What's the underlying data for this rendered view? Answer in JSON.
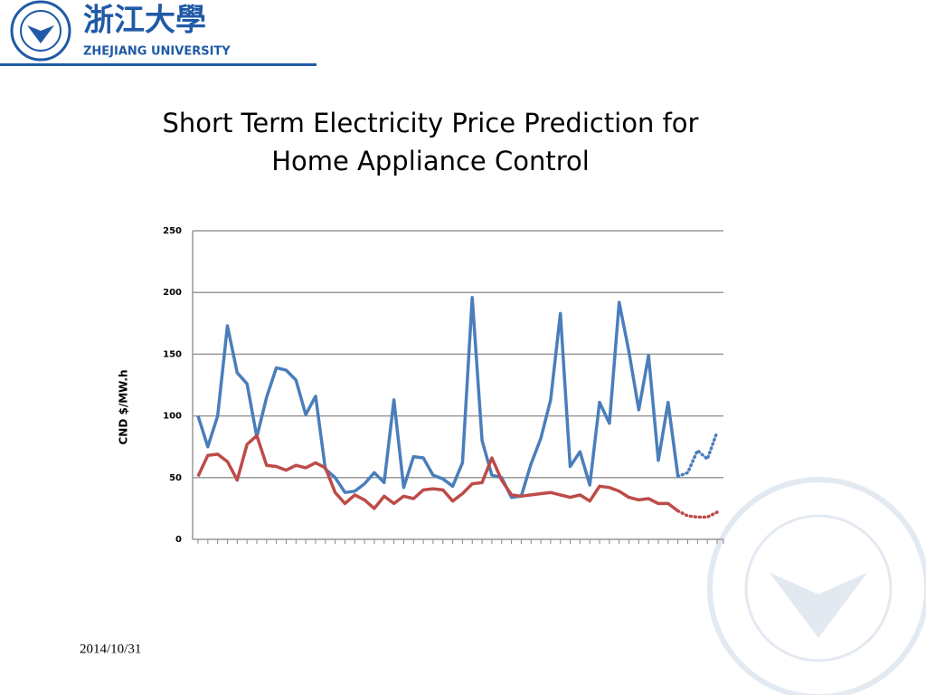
{
  "header": {
    "logo_chinese": "浙江大學",
    "logo_english": "ZHEJIANG UNIVERSITY"
  },
  "footer": {
    "date": "2014/10/31"
  },
  "chart_data": {
    "type": "line",
    "title": [
      "Short Term Electricity Price Prediction for",
      "Home Appliance Control"
    ],
    "y_label": "CND $/MW.h",
    "categories": [
      null,
      null,
      null,
      null,
      null,
      null,
      null,
      null,
      null,
      null,
      null,
      null,
      null,
      null,
      null,
      null,
      null,
      null,
      null,
      null,
      null,
      null,
      null,
      null,
      null,
      null,
      null,
      null,
      null,
      null,
      null,
      null,
      null,
      null,
      null,
      null,
      null,
      null,
      null,
      null,
      null,
      null,
      null,
      null,
      null,
      null,
      null,
      null,
      null,
      null,
      null,
      null,
      null,
      null
    ],
    "series": [
      {
        "color": "#4a7ebb",
        "dotted_from_index": 49,
        "values": [
          100,
          75,
          100,
          173,
          135,
          126,
          83,
          115,
          139,
          137,
          129,
          101,
          116,
          57,
          50,
          38,
          39,
          45,
          54,
          46,
          113,
          42,
          67,
          66,
          52,
          49,
          43,
          62,
          196,
          80,
          52,
          50,
          34,
          35,
          61,
          82,
          113,
          183,
          59,
          71,
          44,
          111,
          94,
          192,
          152,
          105,
          149,
          64,
          111,
          51,
          54,
          72,
          65,
          87
        ]
      },
      {
        "color": "#be4b48",
        "dotted_from_index": 49,
        "values": [
          51,
          68,
          69,
          63,
          48,
          77,
          84,
          60,
          59,
          56,
          60,
          58,
          62,
          58,
          38,
          29,
          36,
          32,
          25,
          35,
          29,
          35,
          33,
          40,
          41,
          40,
          31,
          37,
          45,
          46,
          66,
          48,
          36,
          35,
          36,
          37,
          38,
          36,
          34,
          36,
          31,
          43,
          42,
          39,
          34,
          32,
          33,
          29,
          29,
          23,
          19,
          18,
          18,
          22
        ]
      }
    ],
    "ylim": [
      0,
      250
    ],
    "yticks": [
      0,
      50,
      100,
      150,
      200,
      250
    ],
    "grid": true
  }
}
